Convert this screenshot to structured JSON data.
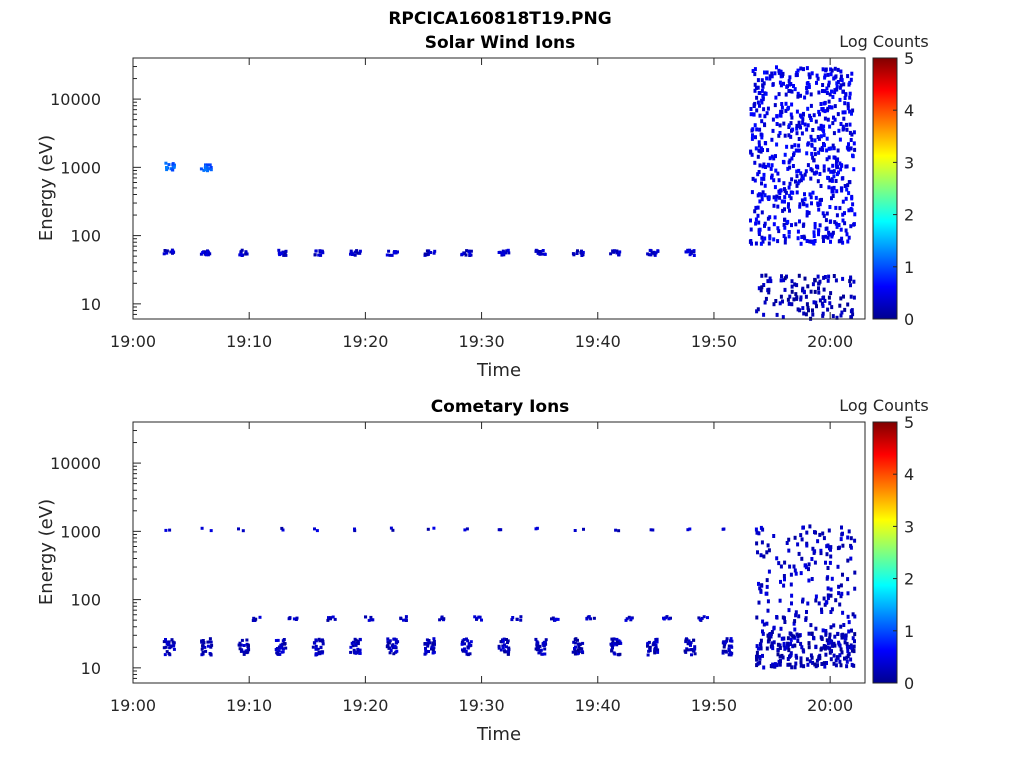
{
  "figure_title": "RPCICA160818T19.PNG",
  "chart_data": [
    {
      "type": "heatmap",
      "title": "Solar Wind Ions",
      "xlabel": "Time",
      "ylabel": "Energy (eV)",
      "x_ticks": [
        "19:00",
        "19:10",
        "19:20",
        "19:30",
        "19:40",
        "19:50",
        "20:00"
      ],
      "x_range_minutes": [
        0,
        63
      ],
      "y_ticks": [
        10,
        100,
        1000,
        10000
      ],
      "y_scale": "log",
      "y_range": [
        6,
        40000
      ],
      "colorbar": {
        "label": "Log Counts",
        "ticks": [
          0,
          1,
          2,
          3,
          4,
          5
        ],
        "range": [
          0,
          5
        ],
        "colormap": "jet"
      },
      "clusters": [
        {
          "t": [
            3.0,
            9.0
          ],
          "step": 3.2,
          "e": 1000,
          "spread": 0.07,
          "level": 1.1,
          "n": 14
        },
        {
          "t": [
            3.0,
            51.0
          ],
          "step": 3.2,
          "e": 55,
          "spread": 0.04,
          "level": 0.3,
          "n": 12
        },
        {
          "t": [
            53.0,
            62.0
          ],
          "e": 1500,
          "spread": 1.3,
          "level": 0.5,
          "n": 650
        },
        {
          "t": [
            53.5,
            62.0
          ],
          "e": 12,
          "spread": 0.35,
          "level": 0.2,
          "n": 130
        }
      ]
    },
    {
      "type": "heatmap",
      "title": "Cometary Ions",
      "xlabel": "Time",
      "ylabel": "Energy (eV)",
      "x_ticks": [
        "19:00",
        "19:10",
        "19:20",
        "19:30",
        "19:40",
        "19:50",
        "20:00"
      ],
      "x_range_minutes": [
        0,
        63
      ],
      "y_ticks": [
        10,
        100,
        1000,
        10000
      ],
      "y_scale": "log",
      "y_range": [
        6,
        40000
      ],
      "colorbar": {
        "label": "Log Counts",
        "ticks": [
          0,
          1,
          2,
          3,
          4,
          5
        ],
        "range": [
          0,
          5
        ],
        "colormap": "jet"
      },
      "clusters": [
        {
          "t": [
            3.0,
            52.0
          ],
          "step": 3.2,
          "e": 20,
          "spread": 0.12,
          "level": 0.25,
          "n": 26
        },
        {
          "t": [
            3.0,
            52.0
          ],
          "step": 3.2,
          "e": 1050,
          "spread": 0.02,
          "level": 0.3,
          "n": 2
        },
        {
          "t": [
            10.5,
            49.0
          ],
          "step": 3.2,
          "e": 52,
          "spread": 0.03,
          "level": 0.3,
          "n": 6
        },
        {
          "t": [
            53.5,
            62.0
          ],
          "e": 150,
          "spread": 0.9,
          "level": 0.3,
          "n": 220
        },
        {
          "t": [
            53.5,
            62.0
          ],
          "e": 18,
          "spread": 0.25,
          "level": 0.2,
          "n": 170
        }
      ]
    }
  ]
}
